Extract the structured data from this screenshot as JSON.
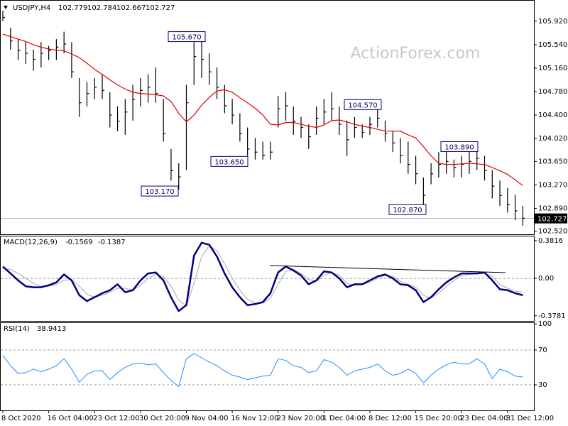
{
  "chart_data": [
    {
      "type": "ohlc",
      "title": "USDJPY,H4",
      "last_bar": {
        "open": 102.779,
        "high": 102.784,
        "low": 102.667,
        "close": 102.727
      },
      "watermark": "ActionForex.com",
      "categories": [
        "8 Oct 2020",
        null,
        null,
        null,
        null,
        null,
        "16 Oct 04:00",
        null,
        null,
        null,
        null,
        null,
        "23 Oct 12:00",
        null,
        null,
        null,
        null,
        null,
        "30 Oct 20:00",
        null,
        null,
        null,
        null,
        null,
        "9 Nov 04:00",
        null,
        null,
        null,
        null,
        null,
        "16 Nov 12:00",
        null,
        null,
        null,
        null,
        null,
        "23 Nov 20:00",
        null,
        null,
        null,
        null,
        null,
        "1 Dec 04:00",
        null,
        null,
        null,
        null,
        null,
        "8 Dec 12:00",
        null,
        null,
        null,
        null,
        null,
        "15 Dec 20:00",
        null,
        null,
        null,
        null,
        null,
        "23 Dec 04:00",
        null,
        null,
        null,
        null,
        null,
        "31 Dec 12:00",
        null,
        null
      ],
      "high": [
        106.09,
        105.81,
        105.63,
        105.58,
        105.46,
        105.58,
        105.52,
        105.63,
        105.75,
        105.58,
        105.0,
        104.94,
        105.0,
        105.06,
        104.77,
        104.54,
        104.66,
        104.89,
        105.0,
        105.06,
        105.17,
        104.66,
        103.85,
        103.62,
        104.89,
        105.58,
        105.67,
        105.4,
        105.17,
        104.89,
        104.66,
        104.43,
        104.2,
        104.03,
        103.97,
        103.97,
        104.71,
        104.77,
        104.54,
        104.37,
        104.25,
        104.54,
        104.66,
        104.77,
        104.54,
        104.31,
        104.37,
        104.25,
        104.37,
        104.57,
        104.31,
        104.14,
        104.03,
        103.97,
        103.74,
        103.39,
        103.62,
        103.8,
        103.85,
        103.68,
        103.74,
        103.8,
        103.89,
        103.74,
        103.51,
        103.34,
        103.22,
        103.11,
        102.93
      ],
      "low": [
        105.92,
        105.46,
        105.29,
        105.23,
        105.12,
        105.17,
        105.29,
        105.29,
        105.4,
        105.0,
        104.37,
        104.54,
        104.66,
        104.66,
        104.2,
        104.14,
        104.08,
        104.31,
        104.54,
        104.6,
        104.6,
        103.97,
        103.34,
        103.19,
        103.51,
        104.89,
        105.0,
        104.89,
        104.66,
        104.43,
        104.25,
        103.97,
        103.74,
        103.68,
        103.68,
        103.68,
        104.2,
        104.31,
        104.08,
        104.03,
        103.85,
        104.08,
        104.25,
        104.31,
        104.08,
        103.74,
        104.03,
        104.03,
        104.08,
        104.2,
        103.97,
        103.8,
        103.62,
        103.45,
        103.28,
        102.87,
        103.28,
        103.39,
        103.45,
        103.39,
        103.39,
        103.45,
        103.51,
        103.34,
        103.05,
        102.93,
        102.82,
        102.7,
        102.61
      ],
      "close": [
        105.98,
        105.6,
        105.45,
        105.4,
        105.3,
        105.4,
        105.45,
        105.5,
        105.55,
        105.1,
        104.6,
        104.75,
        104.85,
        104.8,
        104.4,
        104.3,
        104.45,
        104.65,
        104.8,
        104.85,
        104.75,
        104.1,
        103.5,
        103.4,
        104.6,
        105.35,
        105.3,
        105.1,
        104.85,
        104.55,
        104.4,
        104.1,
        103.85,
        103.8,
        103.75,
        103.8,
        104.5,
        104.55,
        104.3,
        104.2,
        104.05,
        104.35,
        104.45,
        104.5,
        104.25,
        104.0,
        104.2,
        104.12,
        104.25,
        104.35,
        104.1,
        103.95,
        103.75,
        103.6,
        103.45,
        103.1,
        103.45,
        103.6,
        103.65,
        103.55,
        103.6,
        103.65,
        103.7,
        103.5,
        103.25,
        103.1,
        102.95,
        102.85,
        102.73
      ],
      "color": "#000000",
      "ma": {
        "color": "#e00000",
        "values": [
          105.71,
          105.67,
          105.63,
          105.59,
          105.54,
          105.5,
          105.47,
          105.45,
          105.44,
          105.39,
          105.33,
          105.24,
          105.14,
          105.06,
          104.97,
          104.89,
          104.82,
          104.77,
          104.75,
          104.74,
          104.73,
          104.71,
          104.62,
          104.43,
          104.29,
          104.4,
          104.56,
          104.69,
          104.79,
          104.81,
          104.77,
          104.68,
          104.6,
          104.51,
          104.4,
          104.25,
          104.24,
          104.28,
          104.28,
          104.25,
          104.22,
          104.2,
          104.24,
          104.31,
          104.32,
          104.29,
          104.25,
          104.22,
          104.2,
          104.17,
          104.14,
          104.14,
          104.14,
          104.08,
          104.03,
          103.89,
          103.74,
          103.62,
          103.6,
          103.6,
          103.61,
          103.62,
          103.61,
          103.6,
          103.55,
          103.5,
          103.44,
          103.35,
          103.26
        ]
      },
      "annotations": [
        {
          "value": 105.67,
          "label": "105.670"
        },
        {
          "value": 103.17,
          "label": "103.170"
        },
        {
          "value": 103.65,
          "label": "103.650"
        },
        {
          "value": 104.57,
          "label": "104.570"
        },
        {
          "value": 103.89,
          "label": "103.890"
        },
        {
          "value": 102.87,
          "label": "102.870"
        }
      ],
      "ylim": [
        102.47,
        106.24
      ],
      "yticks": [
        {
          "value": 105.92,
          "label": "105.920"
        },
        {
          "value": 105.54,
          "label": "105.540"
        },
        {
          "value": 105.16,
          "label": "105.160"
        },
        {
          "value": 104.78,
          "label": "104.780"
        },
        {
          "value": 104.4,
          "label": "104.400"
        },
        {
          "value": 104.02,
          "label": "104.020"
        },
        {
          "value": 103.65,
          "label": "103.650"
        },
        {
          "value": 103.27,
          "label": "103.270"
        },
        {
          "value": 102.89,
          "label": "102.890"
        },
        {
          "value": 102.52,
          "label": "102.520"
        }
      ]
    },
    {
      "type": "macd",
      "title": "MACD(12,26,9)",
      "current": [
        -0.1569,
        -0.1387
      ],
      "series": [
        {
          "color": "#000080",
          "values": [
            0.12,
            0.05,
            -0.02,
            -0.08,
            -0.09,
            -0.09,
            -0.07,
            -0.04,
            0.04,
            -0.02,
            -0.17,
            -0.23,
            -0.19,
            -0.15,
            -0.12,
            -0.06,
            -0.14,
            -0.12,
            -0.02,
            0.05,
            0.06,
            -0.02,
            -0.19,
            -0.33,
            -0.27,
            0.23,
            0.36,
            0.34,
            0.22,
            0.05,
            -0.09,
            -0.19,
            -0.27,
            -0.26,
            -0.24,
            -0.15,
            0.06,
            0.12,
            0.08,
            0.03,
            -0.06,
            -0.02,
            0.07,
            0.06,
            0.0,
            -0.09,
            -0.06,
            -0.06,
            -0.02,
            0.02,
            0.04,
            0.0,
            -0.06,
            -0.07,
            -0.12,
            -0.24,
            -0.19,
            -0.11,
            -0.04,
            0.01,
            0.05,
            0.05,
            0.05,
            0.06,
            -0.02,
            -0.11,
            -0.12,
            -0.15,
            -0.17
          ]
        },
        {
          "color": "#a8a8a8",
          "values": [
            0.1,
            0.09,
            0.05,
            0.0,
            -0.05,
            -0.08,
            -0.08,
            -0.06,
            -0.02,
            -0.01,
            -0.08,
            -0.16,
            -0.19,
            -0.17,
            -0.14,
            -0.1,
            -0.1,
            -0.12,
            -0.07,
            0.0,
            0.04,
            0.02,
            -0.08,
            -0.22,
            -0.28,
            -0.05,
            0.22,
            0.33,
            0.28,
            0.15,
            0.0,
            -0.12,
            -0.21,
            -0.25,
            -0.25,
            -0.2,
            -0.06,
            0.07,
            0.09,
            0.05,
            -0.01,
            -0.03,
            0.03,
            0.06,
            0.03,
            -0.05,
            -0.07,
            -0.06,
            -0.04,
            0.0,
            0.03,
            0.02,
            -0.03,
            -0.06,
            -0.09,
            -0.17,
            -0.2,
            -0.15,
            -0.08,
            -0.02,
            0.03,
            0.04,
            0.05,
            0.05,
            0.02,
            -0.06,
            -0.1,
            -0.13,
            -0.14
          ]
        }
      ],
      "levels": [
        0
      ],
      "ylim": [
        -0.43,
        0.424
      ],
      "yticks": [
        0.3816,
        {
          "value": 0,
          "label": "0.00"
        },
        -0.3781
      ]
    },
    {
      "type": "rsi",
      "title": "RSI(14)",
      "current": [
        38.9413
      ],
      "series": [
        {
          "color": "#1e90ff",
          "values": [
            64,
            52,
            43,
            44,
            48,
            45,
            48,
            52,
            60,
            48,
            33,
            42,
            46,
            46,
            36,
            44,
            50,
            54,
            55,
            53,
            54,
            44,
            35,
            28,
            60,
            66,
            61,
            56,
            52,
            46,
            41,
            39,
            36,
            38,
            40,
            41,
            60,
            58,
            52,
            50,
            44,
            46,
            59,
            56,
            50,
            41,
            46,
            48,
            50,
            54,
            46,
            41,
            43,
            48,
            43,
            32,
            41,
            48,
            53,
            56,
            54,
            54,
            60,
            54,
            37,
            48,
            45,
            40,
            39
          ]
        }
      ],
      "levels": [
        70,
        30
      ],
      "ylim": [
        0.6,
        101
      ],
      "yticks": [
        100,
        70,
        30
      ]
    }
  ]
}
